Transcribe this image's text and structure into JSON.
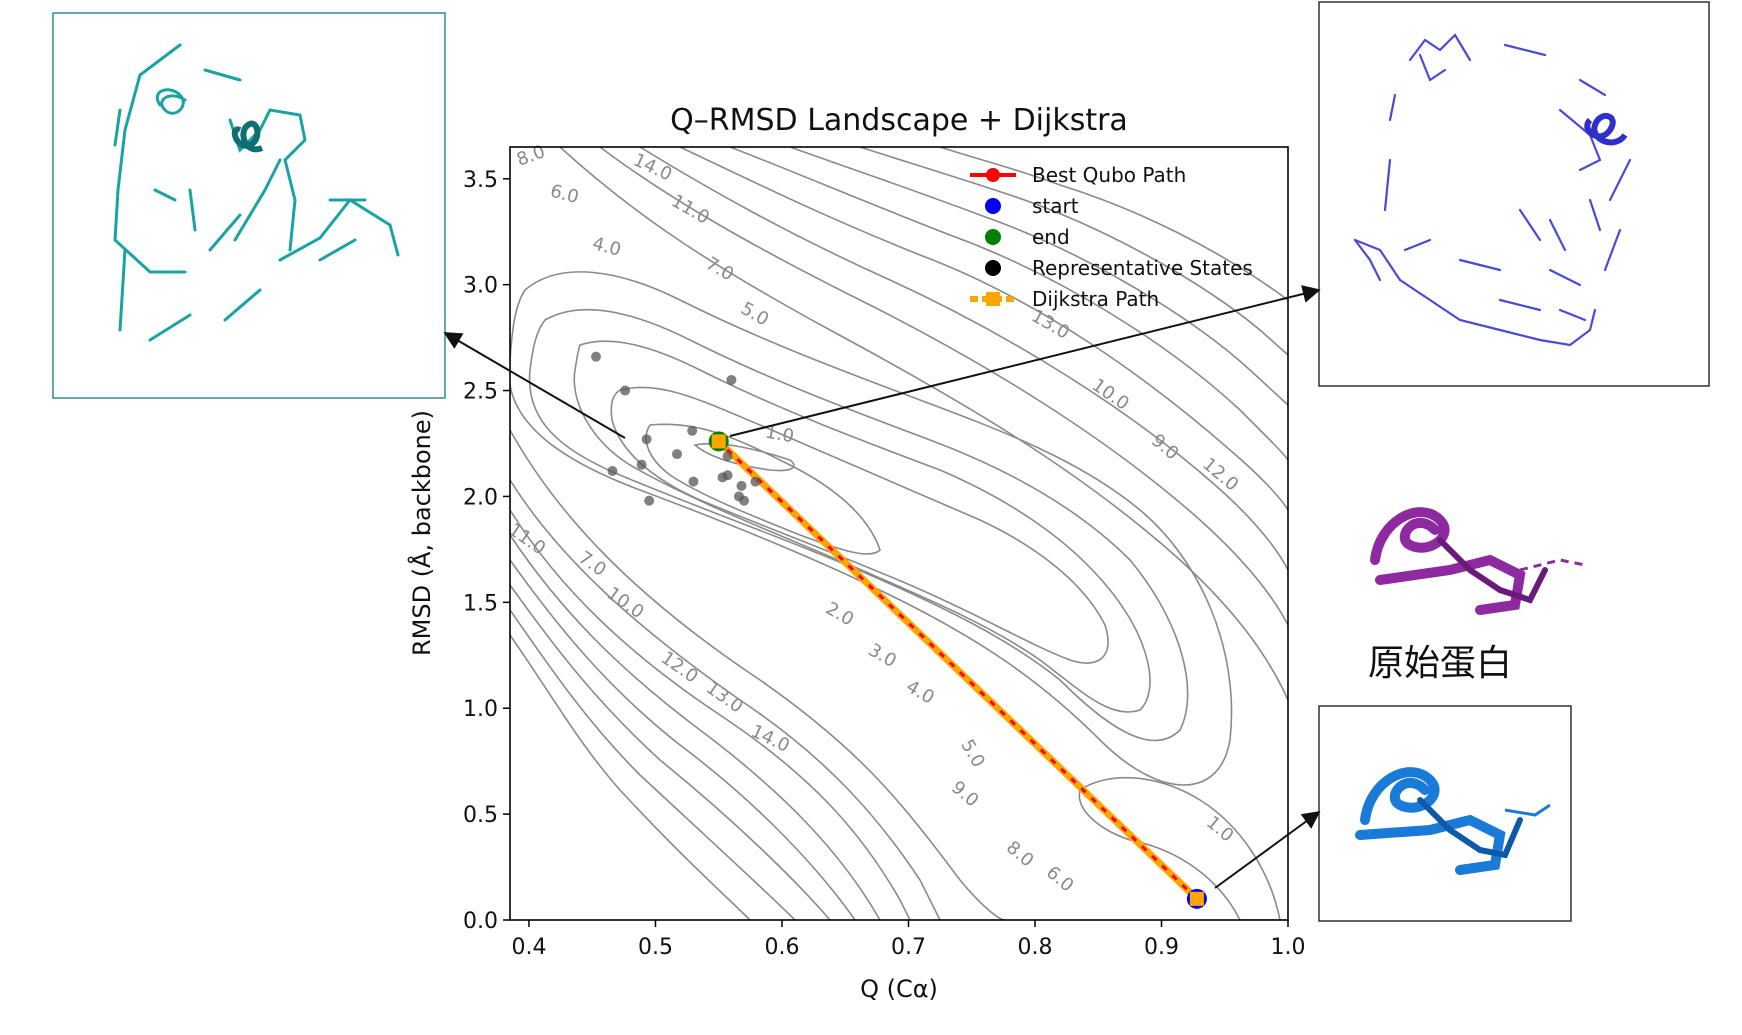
{
  "chart_data": {
    "type": "scatter",
    "title": "Q–RMSD Landscape + Dijkstra",
    "xlabel": "Q (Cα)",
    "ylabel": "RMSD (Å, backbone)",
    "xlim": [
      0.385,
      1.0
    ],
    "ylim": [
      0.0,
      3.65
    ],
    "xticks": [
      0.4,
      0.5,
      0.6,
      0.7,
      0.8,
      0.9,
      1.0
    ],
    "yticks": [
      0.0,
      0.5,
      1.0,
      1.5,
      2.0,
      2.5,
      3.0,
      3.5
    ],
    "xtick_labels": [
      "0.4",
      "0.5",
      "0.6",
      "0.7",
      "0.8",
      "0.9",
      "1.0"
    ],
    "ytick_labels": [
      "0.0",
      "0.5",
      "1.0",
      "1.5",
      "2.0",
      "2.5",
      "3.0",
      "3.5"
    ],
    "legend_position": "top-right",
    "legend": [
      {
        "label": "Best Qubo Path",
        "marker": "line-dot",
        "color": "#ff0000"
      },
      {
        "label": "start",
        "marker": "dot",
        "color": "#0000ff"
      },
      {
        "label": "end",
        "marker": "dot",
        "color": "#008000"
      },
      {
        "label": "Representative States",
        "marker": "dot",
        "color": "#000000"
      },
      {
        "label": "Dijkstra Path",
        "marker": "line-square",
        "color": "#ffa500"
      }
    ],
    "representative_states": [
      {
        "x": 0.453,
        "y": 2.66
      },
      {
        "x": 0.476,
        "y": 2.5
      },
      {
        "x": 0.493,
        "y": 2.27
      },
      {
        "x": 0.489,
        "y": 2.15
      },
      {
        "x": 0.466,
        "y": 2.12
      },
      {
        "x": 0.495,
        "y": 1.98
      },
      {
        "x": 0.517,
        "y": 2.2
      },
      {
        "x": 0.529,
        "y": 2.31
      },
      {
        "x": 0.53,
        "y": 2.07
      },
      {
        "x": 0.553,
        "y": 2.09
      },
      {
        "x": 0.557,
        "y": 2.1
      },
      {
        "x": 0.557,
        "y": 2.19
      },
      {
        "x": 0.56,
        "y": 2.55
      },
      {
        "x": 0.568,
        "y": 2.05
      },
      {
        "x": 0.566,
        "y": 2.0
      },
      {
        "x": 0.57,
        "y": 1.98
      },
      {
        "x": 0.579,
        "y": 2.07
      }
    ],
    "start": {
      "x": 0.928,
      "y": 0.1
    },
    "end": {
      "x": 0.55,
      "y": 2.26
    },
    "best_qubo_path": [
      {
        "x": 0.928,
        "y": 0.1
      },
      {
        "x": 0.55,
        "y": 2.26
      }
    ],
    "dijkstra_path": [
      {
        "x": 0.928,
        "y": 0.1
      },
      {
        "x": 0.55,
        "y": 2.26
      }
    ],
    "contour_levels_labeled": [
      "1.0",
      "2.0",
      "3.0",
      "4.0",
      "5.0",
      "6.0",
      "7.0",
      "8.0",
      "9.0",
      "10.0",
      "11.0",
      "12.0",
      "13.0",
      "14.0"
    ],
    "contour_labels_upper": [
      "8.0",
      "14.0",
      "6.0",
      "11.0",
      "4.0",
      "7.0",
      "5.0",
      "13.0",
      "10.0",
      "9.0",
      "12.0",
      "1.0"
    ],
    "contour_labels_lower": [
      "11.0",
      "7.0",
      "10.0",
      "12.0",
      "13.0",
      "14.0",
      "2.0",
      "3.0",
      "4.0",
      "5.0",
      "9.0",
      "8.0",
      "6.0",
      "1.0"
    ]
  },
  "annotations": {
    "original_protein_caption": "原始蛋白"
  },
  "colors": {
    "contour": "#8a8a8a",
    "best_path": "#ff0000",
    "dijkstra": "#ffa500",
    "start": "#0000ff",
    "end": "#008000",
    "states": "#555555",
    "cyan_protein": "#1aa3a3",
    "violet_protein": "#4a4ad8",
    "purple_protein": "#8e2aa0",
    "blue_protein": "#1a7ad8"
  }
}
